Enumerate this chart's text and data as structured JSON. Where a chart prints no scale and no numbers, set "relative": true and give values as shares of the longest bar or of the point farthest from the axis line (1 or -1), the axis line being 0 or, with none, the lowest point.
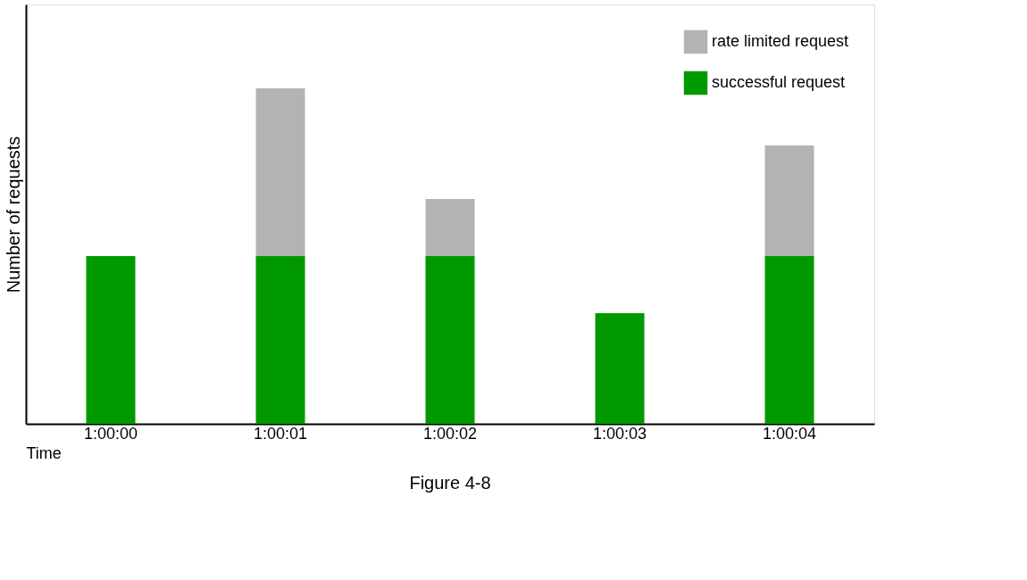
{
  "chart_data": {
    "type": "bar",
    "stacked": true,
    "relative": true,
    "xlabel": "Time",
    "ylabel": "Number of requests",
    "legend": "top right",
    "categories": [
      "1:00:00",
      "1:00:01",
      "1:00:02",
      "1:00:03",
      "1:00:04"
    ],
    "series": [
      {
        "name": "successful request",
        "color": "#009900",
        "values": [
          0.5,
          0.5,
          0.5,
          0.33,
          0.5
        ]
      },
      {
        "name": "rate limited request",
        "color": "#b3b3b3",
        "values": [
          0,
          0.5,
          0.17,
          0,
          0.33
        ]
      }
    ],
    "annotations": [
      "Figure 4-8"
    ]
  }
}
